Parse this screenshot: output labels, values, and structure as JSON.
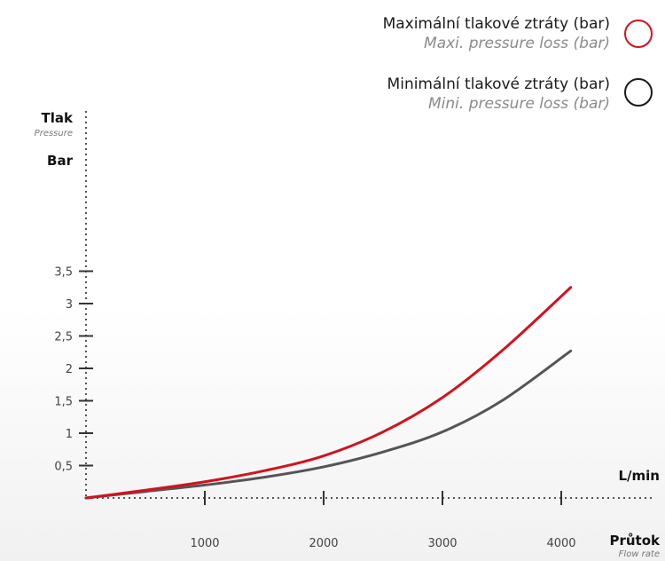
{
  "legend": [
    {
      "label": "Maximální tlakové ztráty (bar)",
      "sublabel": "Maxi. pressure loss (bar)",
      "color": "#d0131e"
    },
    {
      "label": "Minimální tlakové ztráty (bar)",
      "sublabel": "Mini. pressure loss (bar)",
      "color": "#1a1a1a"
    }
  ],
  "y_axis": {
    "title": "Tlak",
    "subtitle": "Pressure",
    "unit": "Bar"
  },
  "x_axis": {
    "title": "Průtok",
    "subtitle": "Flow rate",
    "unit": "L/min"
  },
  "chart_data": {
    "type": "line",
    "ylim": [
      0,
      3.5
    ],
    "xlim": [
      0,
      4200
    ],
    "y_ticks": [
      0.5,
      1,
      1.5,
      2,
      2.5,
      3,
      3.5
    ],
    "y_tick_labels": [
      "0,5",
      "1",
      "1,5",
      "2",
      "2,5",
      "3",
      "3,5"
    ],
    "x_ticks": [
      1000,
      2000,
      3000,
      4000
    ],
    "x_tick_labels": [
      "1000",
      "2000",
      "3000",
      "4000"
    ],
    "grid": false,
    "legend_position": "top-right",
    "series": [
      {
        "name": "Maximální tlakové ztráty (bar)",
        "color": "#d0131e",
        "x": [
          0,
          500,
          1000,
          1500,
          2000,
          2500,
          3000,
          3500,
          4080
        ],
        "y": [
          0.0,
          0.12,
          0.25,
          0.42,
          0.65,
          1.02,
          1.55,
          2.27,
          3.25
        ]
      },
      {
        "name": "Minimální tlakové ztráty (bar)",
        "color": "#555555",
        "x": [
          0,
          500,
          1000,
          1500,
          2000,
          2500,
          3000,
          3500,
          4080
        ],
        "y": [
          0.0,
          0.1,
          0.2,
          0.32,
          0.48,
          0.71,
          1.02,
          1.5,
          2.27
        ]
      }
    ]
  }
}
